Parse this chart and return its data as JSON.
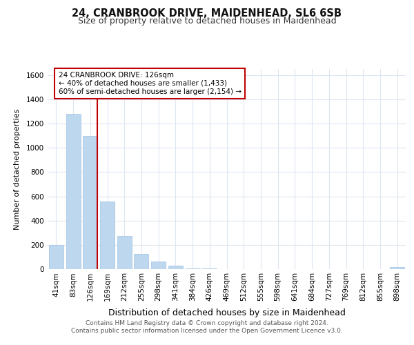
{
  "title": "24, CRANBROOK DRIVE, MAIDENHEAD, SL6 6SB",
  "subtitle": "Size of property relative to detached houses in Maidenhead",
  "xlabel": "Distribution of detached houses by size in Maidenhead",
  "ylabel": "Number of detached properties",
  "categories": [
    "41sqm",
    "83sqm",
    "126sqm",
    "169sqm",
    "212sqm",
    "255sqm",
    "298sqm",
    "341sqm",
    "384sqm",
    "426sqm",
    "469sqm",
    "512sqm",
    "555sqm",
    "598sqm",
    "641sqm",
    "684sqm",
    "727sqm",
    "769sqm",
    "812sqm",
    "855sqm",
    "898sqm"
  ],
  "values": [
    200,
    1280,
    1100,
    560,
    275,
    125,
    60,
    30,
    8,
    3,
    2,
    1,
    1,
    1,
    0,
    0,
    0,
    0,
    0,
    0,
    15
  ],
  "bar_color": "#bdd7ee",
  "bar_edge_color": "#9dc3e6",
  "highlight_index": 2,
  "highlight_line_color": "#c00000",
  "annotation_text": "24 CRANBROOK DRIVE: 126sqm\n← 40% of detached houses are smaller (1,433)\n60% of semi-detached houses are larger (2,154) →",
  "annotation_box_color": "#ffffff",
  "annotation_box_edge_color": "#c00000",
  "ylim": [
    0,
    1650
  ],
  "yticks": [
    0,
    200,
    400,
    600,
    800,
    1000,
    1200,
    1400,
    1600
  ],
  "footer_line1": "Contains HM Land Registry data © Crown copyright and database right 2024.",
  "footer_line2": "Contains public sector information licensed under the Open Government Licence v3.0.",
  "bg_color": "#ffffff",
  "grid_color": "#dce6f1",
  "title_fontsize": 10.5,
  "subtitle_fontsize": 9,
  "xlabel_fontsize": 9,
  "ylabel_fontsize": 8,
  "tick_fontsize": 7.5,
  "footer_fontsize": 6.5,
  "annotation_fontsize": 7.5
}
